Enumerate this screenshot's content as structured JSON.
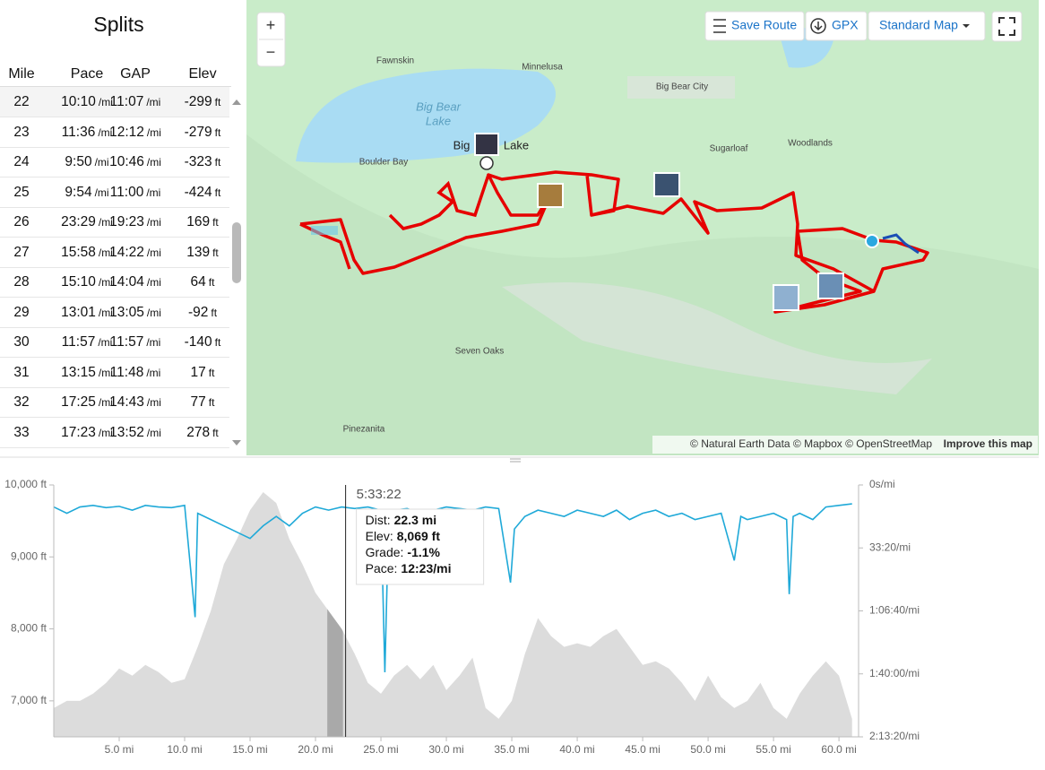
{
  "splits": {
    "title": "Splits",
    "columns": [
      "Mile",
      "Pace",
      "GAP",
      "Elev"
    ],
    "pace_unit": "/mi",
    "elev_unit": "ft",
    "rows": [
      [
        22,
        "10:10",
        "11:07",
        -299
      ],
      [
        23,
        "11:36",
        "12:12",
        -279
      ],
      [
        24,
        "9:50",
        "10:46",
        -323
      ],
      [
        25,
        "9:54",
        "11:00",
        -424
      ],
      [
        26,
        "23:29",
        "19:23",
        169
      ],
      [
        27,
        "15:58",
        "14:22",
        139
      ],
      [
        28,
        "15:10",
        "14:04",
        64
      ],
      [
        29,
        "13:01",
        "13:05",
        -92
      ],
      [
        30,
        "11:57",
        "11:57",
        -140
      ],
      [
        31,
        "13:15",
        "11:48",
        17
      ],
      [
        32,
        "17:25",
        "14:43",
        77
      ],
      [
        33,
        "17:23",
        "13:52",
        278
      ]
    ]
  },
  "map": {
    "zoom_in": "+",
    "zoom_out": "−",
    "save_route": "Save Route",
    "gpx": "GPX",
    "map_style": "Standard Map",
    "places": [
      "Fawnskin",
      "Minnelusa",
      "Big Bear City",
      "Big Bear",
      "Lake",
      "Big",
      "Lake",
      "Boulder Bay",
      "Sugarloaf",
      "Woodlands",
      "Seven Oaks",
      "Pinezanita"
    ],
    "attribution": "© Natural Earth Data © Mapbox © OpenStreetMap",
    "improve": "Improve this map"
  },
  "chart_data": {
    "type": "area",
    "xlim": [
      0,
      61.5
    ],
    "xticks": [
      {
        "value": 5,
        "label": "5.0 mi"
      },
      {
        "value": 10,
        "label": "10.0 mi"
      },
      {
        "value": 15,
        "label": "15.0 mi"
      },
      {
        "value": 20,
        "label": "20.0 mi"
      },
      {
        "value": 25,
        "label": "25.0 mi"
      },
      {
        "value": 30,
        "label": "30.0 mi"
      },
      {
        "value": 35,
        "label": "35.0 mi"
      },
      {
        "value": 40,
        "label": "40.0 mi"
      },
      {
        "value": 45,
        "label": "45.0 mi"
      },
      {
        "value": 50,
        "label": "50.0 mi"
      },
      {
        "value": 55,
        "label": "55.0 mi"
      },
      {
        "value": 60,
        "label": "60.0 mi"
      }
    ],
    "ylim": [
      6500,
      10000
    ],
    "yticks": [
      {
        "value": 7000,
        "label": "7,000 ft"
      },
      {
        "value": 8000,
        "label": "8,000 ft"
      },
      {
        "value": 9000,
        "label": "9,000 ft"
      },
      {
        "value": 10000,
        "label": "10,000 ft"
      }
    ],
    "y2lim": [
      0,
      8000
    ],
    "y2_inverted": true,
    "y2ticks": [
      {
        "value": 0,
        "label": "0s/mi"
      },
      {
        "value": 2000,
        "label": "33:20/mi"
      },
      {
        "value": 4000,
        "label": "1:06:40/mi"
      },
      {
        "value": 6000,
        "label": "1:40:00/mi"
      },
      {
        "value": 8000,
        "label": "2:13:20/mi"
      }
    ],
    "series": [
      {
        "color": "#dcdcdc",
        "x": [
          0,
          1,
          2,
          3,
          4,
          5,
          6,
          7,
          8,
          9,
          10,
          11,
          12,
          13,
          14,
          15,
          16,
          17,
          18,
          19,
          20,
          21,
          22,
          23,
          24,
          25,
          26,
          27,
          28,
          29,
          30,
          31,
          32,
          33,
          34,
          35,
          36,
          37,
          38,
          39,
          40,
          41,
          42,
          43,
          44,
          45,
          46,
          47,
          48,
          49,
          50,
          51,
          52,
          53,
          54,
          55,
          56,
          57,
          58,
          59,
          60,
          61
        ],
        "values": [
          6900,
          7000,
          7000,
          7100,
          7250,
          7450,
          7350,
          7500,
          7400,
          7250,
          7300,
          7750,
          8250,
          8900,
          9250,
          9650,
          9900,
          9750,
          9250,
          8900,
          8500,
          8250,
          8000,
          7650,
          7250,
          7100,
          7350,
          7500,
          7300,
          7500,
          7150,
          7350,
          7600,
          6900,
          6750,
          7000,
          7650,
          8150,
          7900,
          7750,
          7800,
          7750,
          7900,
          8000,
          7750,
          7500,
          7550,
          7450,
          7250,
          7000,
          7350,
          7050,
          6900,
          7000,
          7250,
          6900,
          6750,
          7100,
          7350,
          7550,
          7350,
          6750
        ]
      },
      {
        "color": "#1fa9d8",
        "axis": "y2",
        "x": [
          0,
          1,
          2,
          3,
          4,
          5,
          6,
          7,
          8,
          9,
          10,
          10.8,
          11,
          12,
          13,
          14,
          15,
          16,
          17,
          18,
          19,
          20,
          21,
          22,
          23,
          24,
          25,
          25.3,
          25.6,
          26,
          27,
          28,
          29,
          30,
          31,
          32,
          33,
          34,
          34.9,
          35.2,
          36,
          37,
          38,
          39,
          40,
          41,
          42,
          43,
          44,
          45,
          46,
          47,
          48,
          49,
          50,
          51,
          52,
          52.5,
          53,
          54,
          55,
          56,
          56.2,
          56.5,
          57,
          58,
          59,
          60,
          61
        ],
        "values": [
          700,
          900,
          700,
          650,
          720,
          680,
          800,
          650,
          700,
          720,
          650,
          4200,
          900,
          1100,
          1300,
          1500,
          1700,
          1300,
          1000,
          1300,
          900,
          700,
          800,
          700,
          750,
          700,
          800,
          5950,
          900,
          800,
          750,
          900,
          800,
          700,
          750,
          800,
          700,
          750,
          3100,
          1400,
          1000,
          800,
          900,
          1000,
          800,
          900,
          1000,
          800,
          1100,
          900,
          800,
          1000,
          900,
          1100,
          1000,
          900,
          2400,
          1000,
          1100,
          1000,
          900,
          1100,
          3470,
          1000,
          900,
          1100,
          700,
          650,
          600
        ]
      }
    ],
    "highlight": [
      20.9,
      22.1
    ],
    "highlight_color": "#a9a9a9",
    "cursor_x": 22.3,
    "tooltip": {
      "time": "5:33:22",
      "rows": [
        [
          "Dist:",
          "22.3 mi"
        ],
        [
          "Elev:",
          "8,069 ft"
        ],
        [
          "Grade:",
          "-1.1%"
        ],
        [
          "Pace:",
          "12:23/mi"
        ]
      ]
    }
  }
}
